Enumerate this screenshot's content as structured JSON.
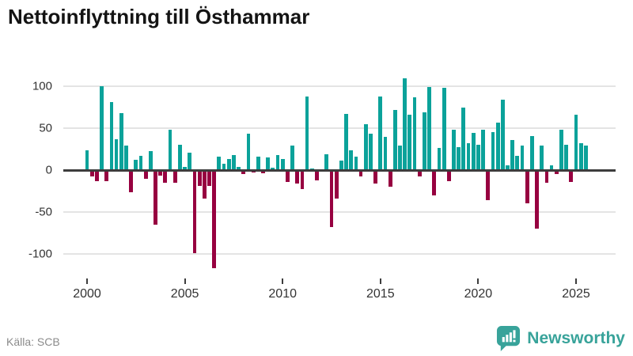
{
  "title": "Nettoinflyttning till Östhammar",
  "source": "Källa: SCB",
  "branding": {
    "name": "Newsworthy",
    "icon": "bar-chart-speech-bubble-icon",
    "color": "#38a39a"
  },
  "chart_data": {
    "type": "bar",
    "title": "Nettoinflyttning till Östhammar",
    "x_unit": "quarter",
    "start": "2000 Q1",
    "end": "2025 Q3",
    "grid": "horizontal",
    "ylim": [
      -125,
      115
    ],
    "y_ticks": [
      100,
      50,
      0,
      -50,
      -100
    ],
    "y_tick_labels": [
      "100",
      "50",
      "0",
      "-50",
      "-100"
    ],
    "x_tick_labels": [
      "2000",
      "2005",
      "2010",
      "2015",
      "2020",
      "2025"
    ],
    "x_tick_indices": [
      0,
      20,
      40,
      60,
      80,
      100
    ],
    "colors": {
      "positive": "#0ba29a",
      "negative": "#970040"
    },
    "values": [
      24,
      -8,
      -13,
      100,
      -13,
      81,
      37,
      68,
      29,
      -26,
      12,
      17,
      -10,
      23,
      -65,
      -7,
      -15,
      48,
      -15,
      30,
      4,
      21,
      -99,
      -19,
      -34,
      -19,
      -117,
      16,
      8,
      13,
      18,
      4,
      -5,
      43,
      -3,
      16,
      -4,
      15,
      3,
      18,
      13,
      -14,
      29,
      -16,
      -23,
      88,
      2,
      -12,
      0,
      19,
      -68,
      -34,
      11,
      67,
      24,
      16,
      -8,
      55,
      43,
      -16,
      88,
      40,
      -20,
      72,
      29,
      109,
      66,
      87,
      -8,
      69,
      99,
      -30,
      26,
      98,
      -13,
      48,
      27,
      75,
      32,
      44,
      30,
      48,
      -36,
      45,
      57,
      84,
      6,
      36,
      17,
      29,
      -40,
      41,
      -70,
      29,
      -15,
      6,
      -5,
      48,
      30,
      -14,
      66,
      32,
      29
    ]
  }
}
